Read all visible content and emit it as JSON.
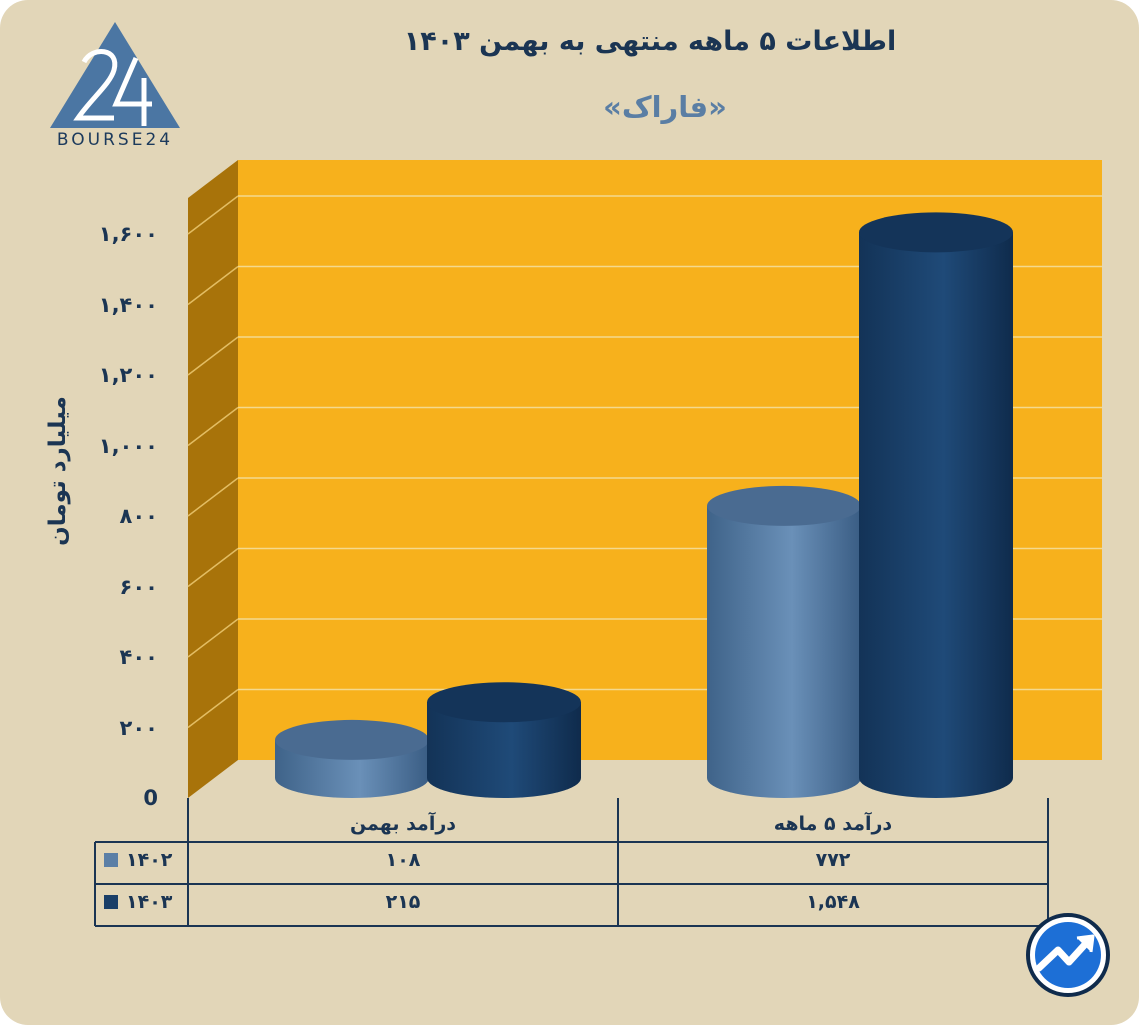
{
  "header": {
    "title": "اطلاعات ۵ ماهه منتهی به بهمن ۱۴۰۳",
    "subtitle": "«فاراک»"
  },
  "logo": {
    "text": "BOURSE24",
    "icon": "bourse24-triangle-logo"
  },
  "brand_icon": "rising-chart-arrow-icon",
  "colors": {
    "background": "#e2d6b8",
    "plot_back": "#f7b11c",
    "plot_side": "#a8730a",
    "series_1402": "#5b7fa6",
    "series_1403": "#1a3f68",
    "text": "#1b3553"
  },
  "chart_data": {
    "type": "bar",
    "style": "3d-cylinder",
    "ylabel": "میلیارد تومان",
    "ylim": [
      0,
      1600
    ],
    "ytick_labels": [
      "0",
      "۲۰۰",
      "۴۰۰",
      "۶۰۰",
      "۸۰۰",
      "۱,۰۰۰",
      "۱,۲۰۰",
      "۱,۴۰۰",
      "۱,۶۰۰"
    ],
    "grid": true,
    "categories": [
      "درآمد بهمن",
      "درآمد ۵ ماهه"
    ],
    "series": [
      {
        "name": "۱۴۰۲",
        "values": [
          108,
          772
        ],
        "value_labels": [
          "۱۰۸",
          "۷۷۲"
        ],
        "color": "#5b7fa6"
      },
      {
        "name": "۱۴۰۳",
        "values": [
          215,
          1548
        ],
        "value_labels": [
          "۲۱۵",
          "۱,۵۴۸"
        ],
        "color": "#1a3f68"
      }
    ]
  }
}
